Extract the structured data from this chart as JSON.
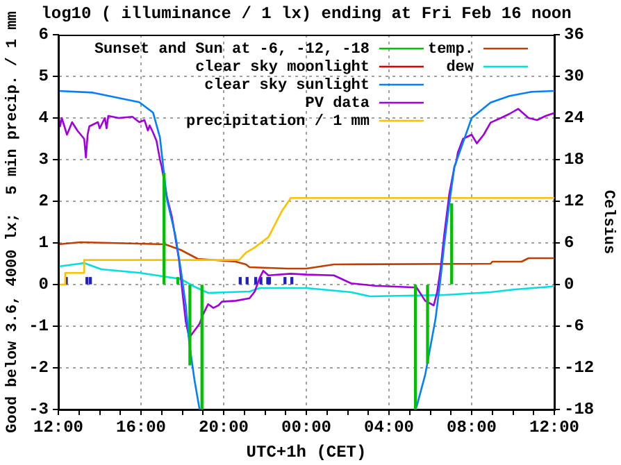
{
  "chart_data": {
    "type": "line",
    "title": "log10 ( illuminance / 1 lx) ending at Fri Feb 16 noon",
    "xlabel": "UTC+1h (CET)",
    "ylabel": "Good below 3.6, 4000 lx;  5 min precip. / 1 mm",
    "y2label": "Celsius",
    "xlim": [
      "--02-15T12:00",
      "--02-16T12:00"
    ],
    "xticks": [
      {
        "value": "--02-15T12:00",
        "label": "12:00"
      },
      {
        "value": "--02-15T13:00",
        "label": null
      },
      {
        "value": "--02-15T14:00",
        "label": null
      },
      {
        "value": "--02-15T15:00",
        "label": null
      },
      {
        "value": "--02-15T16:00",
        "label": "16:00"
      },
      {
        "value": "--02-15T17:00",
        "label": null
      },
      {
        "value": "--02-15T18:00",
        "label": null
      },
      {
        "value": "--02-15T19:00",
        "label": null
      },
      {
        "value": "--02-15T20:00",
        "label": "20:00"
      },
      {
        "value": "--02-15T21:00",
        "label": null
      },
      {
        "value": "--02-15T22:00",
        "label": null
      },
      {
        "value": "--02-15T23:00",
        "label": null
      },
      {
        "value": "--02-16T00:00",
        "label": "00:00"
      },
      {
        "value": "--02-16T01:00",
        "label": null
      },
      {
        "value": "--02-16T02:00",
        "label": null
      },
      {
        "value": "--02-16T03:00",
        "label": null
      },
      {
        "value": "--02-16T04:00",
        "label": "04:00"
      },
      {
        "value": "--02-16T05:00",
        "label": null
      },
      {
        "value": "--02-16T06:00",
        "label": null
      },
      {
        "value": "--02-16T07:00",
        "label": null
      },
      {
        "value": "--02-16T08:00",
        "label": "08:00"
      },
      {
        "value": "--02-16T09:00",
        "label": null
      },
      {
        "value": "--02-16T10:00",
        "label": null
      },
      {
        "value": "--02-16T11:00",
        "label": null
      },
      {
        "value": "--02-16T12:00",
        "label": "12:00"
      }
    ],
    "ylim": [
      -3,
      6
    ],
    "yticks": [
      -3,
      -2,
      -1,
      0,
      1,
      2,
      3,
      4,
      5,
      6
    ],
    "y2lim": [
      -18,
      36
    ],
    "y2ticks": [
      -18,
      -12,
      -6,
      0,
      6,
      12,
      18,
      24,
      30,
      36
    ],
    "grid": true,
    "legend": "top left",
    "marker": "none",
    "line_style": "solid",
    "series": [
      {
        "name": "Sunset and Sun at -6, -12, -18",
        "type": "bar",
        "color": "#00c000",
        "x": [
          "--02-15T17:10",
          "--02-15T17:50",
          "--02-15T18:25",
          "--02-15T19:00",
          "--02-16T05:20",
          "--02-16T05:55",
          "--02-16T07:05"
        ],
        "values": [
          2.67,
          0.17,
          -1.93,
          -3,
          -3,
          -1.89,
          1.94
        ]
      },
      {
        "name": "clear sky moonlight",
        "color": "#e00000"
      },
      {
        "name": "clear sky sunlight",
        "color": "#0080ff",
        "x": [
          "--02-15T12:00",
          "--02-15T13:40",
          "--02-15T15:55",
          "--02-15T16:35",
          "--02-15T16:55",
          "--02-15T17:15",
          "--02-15T17:40",
          "--02-15T17:55",
          "--02-15T18:10",
          "--02-15T18:20",
          "--02-15T18:35",
          "--02-15T18:50",
          "--02-16T00:00",
          "--02-16T05:20",
          "--02-16T05:45",
          "--02-16T06:15",
          "--02-16T06:30",
          "--02-16T06:40",
          "--02-16T06:55",
          "--02-16T07:10",
          "--02-16T07:20",
          "--02-16T08:00",
          "--02-16T08:55",
          "--02-16T09:50",
          "--02-16T10:55",
          "--02-16T12:00"
        ],
        "values": [
          4.65,
          4.61,
          4.38,
          4.13,
          3.53,
          2.06,
          1.17,
          0.39,
          -0.5,
          -1.39,
          -2.28,
          -3,
          null,
          -2.94,
          -2.17,
          -0.83,
          0.17,
          0.94,
          1.94,
          2.83,
          3.06,
          4.0,
          4.37,
          4.53,
          4.63,
          4.65
        ]
      },
      {
        "name": "PV data",
        "color": "#a000e0",
        "x": [
          "--02-15T12:00",
          "--02-15T12:05",
          "--02-15T12:10",
          "--02-15T12:25",
          "--02-15T12:40",
          "--02-15T12:55",
          "--02-15T13:15",
          "--02-15T13:20",
          "--02-15T13:25",
          "--02-15T13:30",
          "--02-15T13:55",
          "--02-15T14:00",
          "--02-15T14:15",
          "--02-15T14:20",
          "--02-15T14:25",
          "--02-15T14:55",
          "--02-15T15:35",
          "--02-15T15:55",
          "--02-15T16:10",
          "--02-15T16:20",
          "--02-15T16:25",
          "--02-15T16:35",
          "--02-15T16:45",
          "--02-15T16:55",
          "--02-15T17:00",
          "--02-15T17:15",
          "--02-15T17:30",
          "--02-15T17:40",
          "--02-15T17:50",
          "--02-15T18:00",
          "--02-15T18:10",
          "--02-15T18:20",
          "--02-15T18:35",
          "--02-15T18:50",
          "--02-15T19:00",
          "--02-15T19:15",
          "--02-15T19:30",
          "--02-15T19:45",
          "--02-15T19:55",
          "--02-15T20:35",
          "--02-15T21:15",
          "--02-15T21:30",
          "--02-15T21:45",
          "--02-15T21:55",
          "--02-15T22:10",
          "--02-15T23:15",
          "--02-16T00:00",
          "--02-16T01:20",
          "--02-16T02:10",
          "--02-16T03:20",
          "--02-16T05:20",
          "--02-16T05:45",
          "--02-16T06:10",
          "--02-16T06:20",
          "--02-16T06:30",
          "--02-16T06:40",
          "--02-16T06:55",
          "--02-16T07:10",
          "--02-16T07:15",
          "--02-16T07:20",
          "--02-16T07:35",
          "--02-16T08:00",
          "--02-16T08:15",
          "--02-16T08:35",
          "--02-16T08:55",
          "--02-16T09:25",
          "--02-16T09:50",
          "--02-16T10:15",
          "--02-16T10:45",
          "--02-16T11:10",
          "--02-16T11:35",
          "--02-16T12:00"
        ],
        "values": [
          4.1,
          3.8,
          4.0,
          3.6,
          3.9,
          3.7,
          3.5,
          3.05,
          3.6,
          3.8,
          3.9,
          3.75,
          4.0,
          3.75,
          4.05,
          4.0,
          4.03,
          3.9,
          3.95,
          3.7,
          3.82,
          3.65,
          3.45,
          3.0,
          2.83,
          2.11,
          1.61,
          1.11,
          0.61,
          -0.17,
          -0.89,
          -1.28,
          -1.11,
          -0.94,
          -0.72,
          -0.47,
          -0.56,
          -0.5,
          -0.41,
          -0.39,
          -0.33,
          -0.17,
          0.17,
          0.33,
          0.22,
          0.26,
          0.24,
          0.22,
          0.03,
          -0.03,
          -0.07,
          -0.39,
          -0.5,
          -0.17,
          0.39,
          1.17,
          2.17,
          2.83,
          2.94,
          3.17,
          3.5,
          3.6,
          3.39,
          3.6,
          3.89,
          4.0,
          4.1,
          4.22,
          4.0,
          3.95,
          4.05,
          4.12
        ]
      },
      {
        "name": "precipitation / 1 mm",
        "color": "#ffc000",
        "x": [
          "--02-15T12:00",
          "--02-15T12:20",
          "--02-15T12:20",
          "--02-15T13:15",
          "--02-15T13:15",
          "--02-15T20:45",
          "--02-15T21:05",
          "--02-15T21:30",
          "--02-15T22:10",
          "--02-15T22:50",
          "--02-15T23:15",
          "--02-16T12:00"
        ],
        "values": [
          0,
          0,
          0.28,
          0.28,
          0.59,
          0.59,
          0.77,
          0.89,
          1.14,
          1.78,
          2.08,
          2.08
        ]
      },
      {
        "name": "temp.",
        "color": "#c04000",
        "axis": "y2",
        "x": [
          "--02-15T12:00",
          "--02-15T13:05",
          "--02-15T17:10",
          "--02-15T17:55",
          "--02-15T18:45",
          "--02-15T20:35",
          "--02-15T21:05",
          "--02-15T21:15",
          "--02-15T23:05",
          "--02-16T00:00",
          "--02-16T01:20",
          "--02-16T08:55",
          "--02-16T09:00",
          "--02-16T10:25",
          "--02-16T10:45",
          "--02-16T12:00"
        ],
        "values": [
          5.8,
          6.1,
          5.8,
          5.0,
          3.7,
          3.3,
          2.9,
          2.5,
          2.3,
          2.3,
          2.9,
          3.0,
          3.3,
          3.3,
          3.8,
          3.8
        ]
      },
      {
        "name": "dew",
        "color": "#00e0e0",
        "axis": "y2",
        "x": [
          "--02-15T12:00",
          "--02-15T13:15",
          "--02-15T14:05",
          "--02-15T15:55",
          "--02-15T17:15",
          "--02-15T17:55",
          "--02-15T18:35",
          "--02-15T19:15",
          "--02-15T21:15",
          "--02-15T21:45",
          "--02-16T00:00",
          "--02-16T02:10",
          "--02-16T03:05",
          "--02-16T06:40",
          "--02-16T08:55",
          "--02-16T10:05",
          "--02-16T11:50",
          "--02-16T12:00"
        ],
        "values": [
          2.6,
          3.1,
          2.2,
          1.7,
          1.1,
          0.8,
          -0.3,
          -1.2,
          -1.0,
          -0.5,
          -0.5,
          -1.1,
          -1.7,
          -1.5,
          -1.1,
          -0.7,
          -0.3,
          -0.2
        ]
      },
      {
        "type": "bar",
        "color": "#2020c0",
        "x": [
          "--02-15T12:20",
          "--02-15T13:20",
          "--02-15T13:30",
          "--02-15T20:45",
          "--02-15T21:05",
          "--02-15T21:30",
          "--02-15T21:45",
          "--02-15T22:05",
          "--02-15T22:10",
          "--02-15T22:55",
          "--02-15T23:15"
        ],
        "values": [
          0.17,
          0.17,
          0.17,
          0.17,
          0.17,
          0.17,
          0.17,
          0.17,
          0.17,
          0.17,
          0.17
        ]
      }
    ]
  }
}
